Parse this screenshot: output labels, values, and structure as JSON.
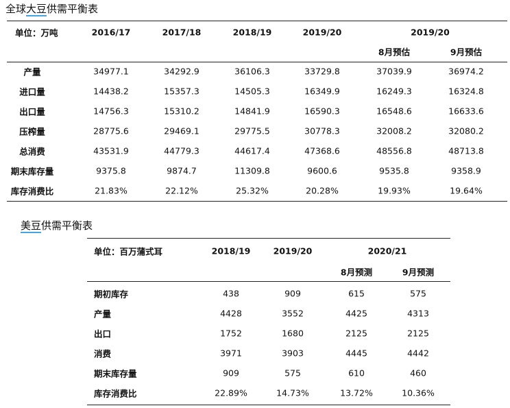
{
  "tables": [
    {
      "title_pre": "全球",
      "title_mark": "大豆",
      "title_post": "供需平衡表",
      "unit": "单位：万吨",
      "years": [
        "2016/17",
        "2017/18",
        "2018/19",
        "2019/20"
      ],
      "group": "2019/20",
      "sub": [
        "8月预估",
        "9月预估"
      ],
      "rows": [
        [
          "产量",
          "34977.1",
          "34292.9",
          "36106.3",
          "33729.8",
          "37039.9",
          "36974.2"
        ],
        [
          "进口量",
          "14438.2",
          "15357.3",
          "14505.3",
          "16349.9",
          "16249.3",
          "16324.8"
        ],
        [
          "出口量",
          "14756.3",
          "15310.2",
          "14841.9",
          "16590.3",
          "16548.6",
          "16633.6"
        ],
        [
          "压榨量",
          "28775.6",
          "29469.1",
          "29775.5",
          "30778.3",
          "32008.2",
          "32080.2"
        ],
        [
          "总消费",
          "43531.9",
          "44779.3",
          "44617.4",
          "47368.6",
          "48556.8",
          "48713.8"
        ],
        [
          "期末库存量",
          "9375.8",
          "9874.7",
          "11309.8",
          "9600.6",
          "9535.8",
          "9358.9"
        ],
        [
          "库存消费比",
          "21.83%",
          "22.12%",
          "25.32%",
          "20.28%",
          "19.93%",
          "19.64%"
        ]
      ]
    },
    {
      "title_pre": "",
      "title_mark": "美豆",
      "title_post": "供需平衡表",
      "unit": "单位：百万蒲式耳",
      "years": [
        "2018/19",
        "2019/20"
      ],
      "group": "2020/21",
      "sub": [
        "8月预测",
        "9月预测"
      ],
      "rows": [
        [
          "期初库存",
          "438",
          "909",
          "615",
          "575"
        ],
        [
          "产量",
          "4428",
          "3552",
          "4425",
          "4313"
        ],
        [
          "出口",
          "1752",
          "1680",
          "2125",
          "2125"
        ],
        [
          "消费",
          "3971",
          "3903",
          "4445",
          "4442"
        ],
        [
          "期末库存量",
          "909",
          "575",
          "610",
          "460"
        ],
        [
          "库存消费比",
          "22.89%",
          "14.73%",
          "13.72%",
          "10.36%"
        ]
      ]
    }
  ]
}
